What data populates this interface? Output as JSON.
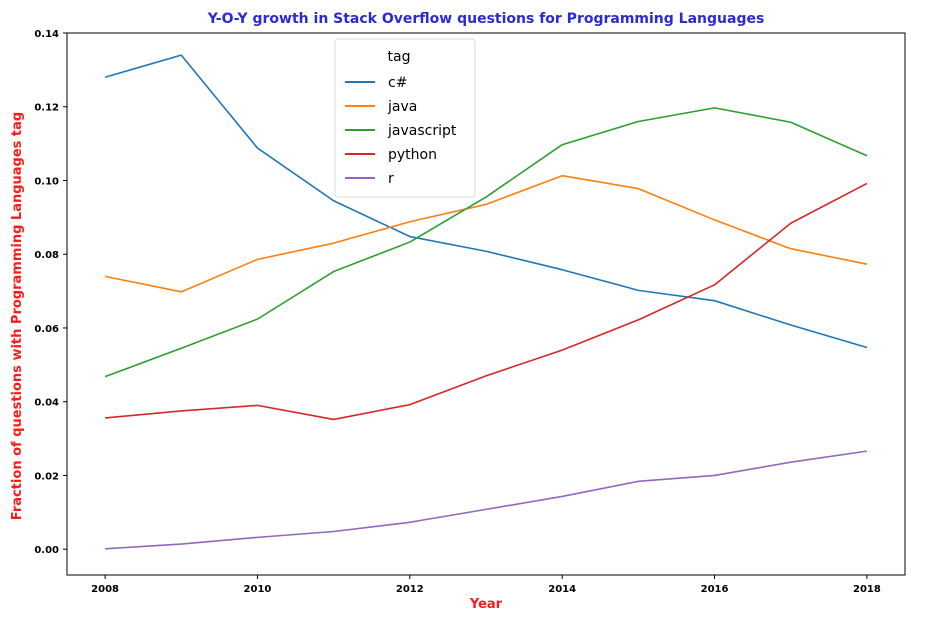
{
  "chart_data": {
    "type": "line",
    "title": "Y-O-Y growth in Stack Overflow questions for Programming Languages",
    "xlabel": "Year",
    "ylabel": "Fraction of questions with Programming Languages tag",
    "x": [
      2008,
      2009,
      2010,
      2011,
      2012,
      2013,
      2014,
      2015,
      2016,
      2017,
      2018
    ],
    "xlim": [
      2007.5,
      2018.5
    ],
    "ylim": [
      -0.007,
      0.14
    ],
    "xticks": [
      "2008",
      "2010",
      "2012",
      "2014",
      "2016",
      "2018"
    ],
    "yticks": [
      "0.00",
      "0.02",
      "0.04",
      "0.06",
      "0.08",
      "0.10",
      "0.12",
      "0.14"
    ],
    "grid": false,
    "legend": {
      "title": "tag",
      "position": "top-center"
    },
    "series": [
      {
        "name": "c#",
        "color": "#1f77b4",
        "values": [
          0.128,
          0.134,
          0.1088,
          0.0945,
          0.0848,
          0.0808,
          0.0758,
          0.0702,
          0.0674,
          0.0608,
          0.0547
        ]
      },
      {
        "name": "java",
        "color": "#ff7f0e",
        "values": [
          0.074,
          0.0698,
          0.0786,
          0.083,
          0.0888,
          0.0935,
          0.1013,
          0.0978,
          0.0893,
          0.0815,
          0.0773
        ]
      },
      {
        "name": "javascript",
        "color": "#2ca02c",
        "values": [
          0.0468,
          0.0545,
          0.0624,
          0.0753,
          0.0833,
          0.0955,
          0.1097,
          0.116,
          0.1197,
          0.1158,
          0.1067
        ]
      },
      {
        "name": "python",
        "color": "#d62728",
        "values": [
          0.0356,
          0.0375,
          0.039,
          0.0352,
          0.0392,
          0.047,
          0.054,
          0.0622,
          0.0717,
          0.0884,
          0.0992
        ]
      },
      {
        "name": "r",
        "color": "#9467bd",
        "values": [
          0.0001,
          0.0014,
          0.0032,
          0.0048,
          0.0073,
          0.0108,
          0.0143,
          0.0184,
          0.02,
          0.0236,
          0.0266
        ]
      }
    ]
  },
  "colors": {
    "title": "#2b2bd6",
    "axis_label": "#ff1a1a"
  }
}
